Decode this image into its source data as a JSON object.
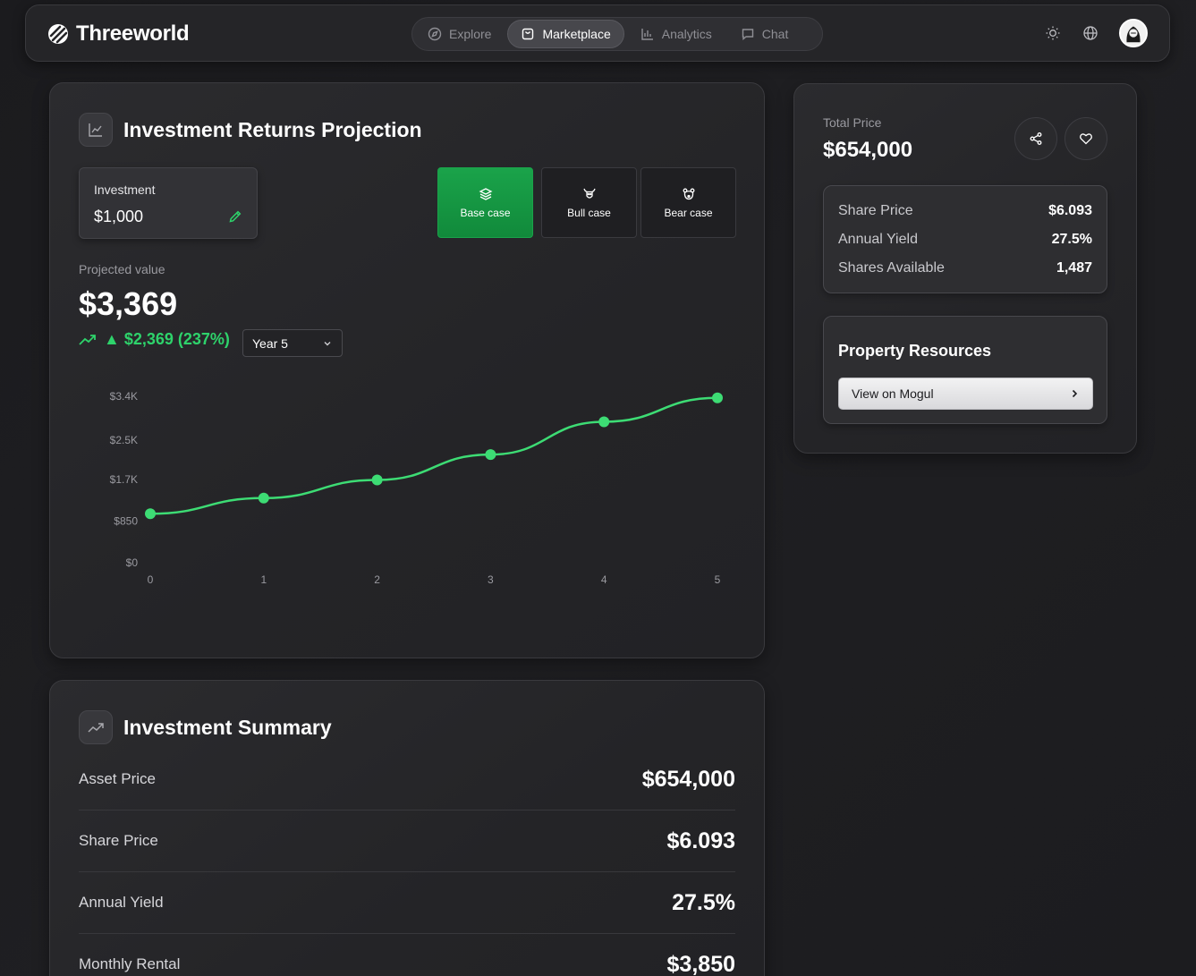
{
  "brand": {
    "name": "Threeworld"
  },
  "nav": {
    "tabs": [
      {
        "label": "Explore",
        "icon": "compass-icon"
      },
      {
        "label": "Marketplace",
        "icon": "shopping-bag-icon",
        "active": true
      },
      {
        "label": "Analytics",
        "icon": "bar-chart-icon"
      },
      {
        "label": "Chat",
        "icon": "chat-icon"
      }
    ]
  },
  "projection": {
    "title": "Investment Returns Projection",
    "investment_label": "Investment",
    "investment_value": "$1,000",
    "scenarios": [
      {
        "label": "Base case",
        "icon": "layers-icon",
        "active": true
      },
      {
        "label": "Bull case",
        "icon": "bull-icon"
      },
      {
        "label": "Bear case",
        "icon": "bear-icon"
      }
    ],
    "projected_label": "Projected value",
    "projected_value": "$3,369",
    "gain_text": "▲ $2,369 (237%)",
    "year_select": "Year 5"
  },
  "chart_data": {
    "type": "line",
    "x": [
      0,
      1,
      2,
      3,
      4,
      5
    ],
    "series": [
      {
        "values": [
          1000,
          1320,
          1690,
          2210,
          2880,
          3369
        ]
      }
    ],
    "ylim": [
      0,
      3400
    ],
    "yticks": [
      0,
      850,
      1700,
      2500,
      3400
    ],
    "ytick_labels": [
      "$0",
      "$850",
      "$1.7K",
      "$2.5K",
      "$3.4K"
    ],
    "xtick_labels": [
      "0",
      "1",
      "2",
      "3",
      "4",
      "5"
    ],
    "grid": false,
    "line_color": "#3ddc74"
  },
  "summary": {
    "title": "Investment Summary",
    "rows": [
      {
        "label": "Asset Price",
        "value": "$654,000"
      },
      {
        "label": "Share Price",
        "value": "$6.093"
      },
      {
        "label": "Annual Yield",
        "value": "27.5%"
      },
      {
        "label": "Monthly Rental",
        "value": "$3,850"
      }
    ]
  },
  "side": {
    "total_price_label": "Total Price",
    "total_price_value": "$654,000",
    "stats": [
      {
        "label": "Share Price",
        "value": "$6.093"
      },
      {
        "label": "Annual Yield",
        "value": "27.5%"
      },
      {
        "label": "Shares Available",
        "value": "1,487"
      }
    ],
    "resources_title": "Property Resources",
    "mogul_button": "View on Mogul"
  },
  "colors": {
    "accent_green": "#1aa34a",
    "gain_green": "#2ed36b"
  }
}
